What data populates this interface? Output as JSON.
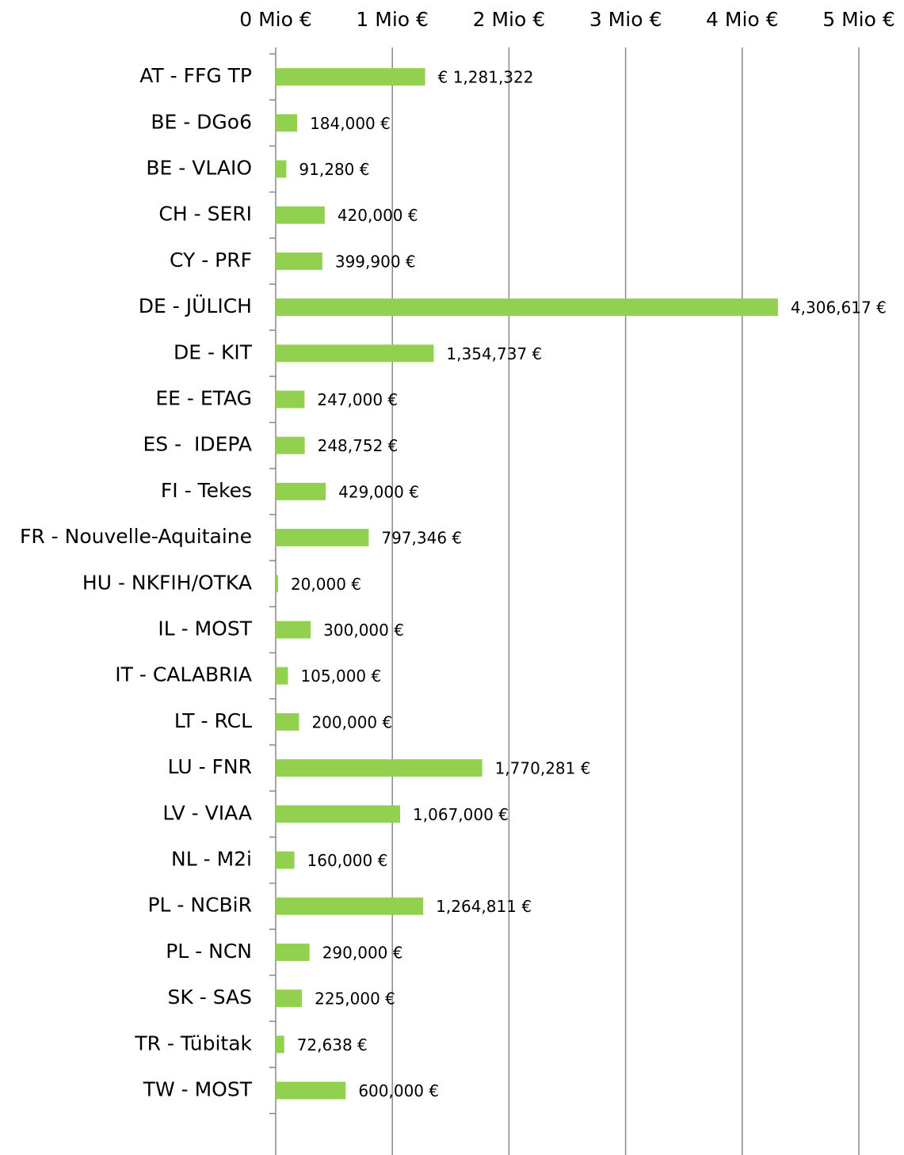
{
  "chart_data": {
    "type": "hbar",
    "categories": [
      "AT - FFG TP",
      "BE - DGo6",
      "BE - VLAIO",
      "CH - SERI",
      "CY - PRF",
      "DE - JÜLICH",
      "DE - KIT",
      "EE - ETAG",
      "ES -  IDEPA",
      "FI - Tekes",
      "FR - Nouvelle-Aquitaine",
      "HU - NKFIH/OTKA",
      "IL - MOST",
      "IT - CALABRIA",
      "LT - RCL",
      "LU - FNR",
      "LV - VIAA",
      "NL - M2i",
      "PL - NCBiR",
      "PL - NCN",
      "SK - SAS",
      "TR - Tübitak",
      "TW - MOST"
    ],
    "values": [
      1281322,
      184000,
      91280,
      420000,
      399900,
      4306617,
      1354737,
      247000,
      248752,
      429000,
      797346,
      20000,
      300000,
      105000,
      200000,
      1770281,
      1067000,
      160000,
      1264811,
      290000,
      225000,
      72638,
      600000
    ],
    "value_labels": [
      "€ 1,281,322",
      "184,000 €",
      "91,280 €",
      "420,000 €",
      "399,900 €",
      "4,306,617 €",
      "1,354,737 €",
      "247,000 €",
      "248,752 €",
      "429,000 €",
      "797,346 €",
      "20,000 €",
      "300,000 €",
      "105,000 €",
      "200,000 €",
      "1,770,281 €",
      "1,067,000 €",
      "160,000 €",
      "1,264,811 €",
      "290,000 €",
      "225,000 €",
      "72,638 €",
      "600,000 €"
    ],
    "color": "#92d050",
    "xlim": [
      0,
      5000000
    ],
    "xticks": [
      {
        "value": 0,
        "label": "0 Mio €"
      },
      {
        "value": 1000000,
        "label": "1 Mio €"
      },
      {
        "value": 2000000,
        "label": "2 Mio €"
      },
      {
        "value": 3000000,
        "label": "3 Mio €"
      },
      {
        "value": 4000000,
        "label": "4 Mio €"
      },
      {
        "value": 5000000,
        "label": "5 Mio €"
      }
    ],
    "grid": true
  }
}
